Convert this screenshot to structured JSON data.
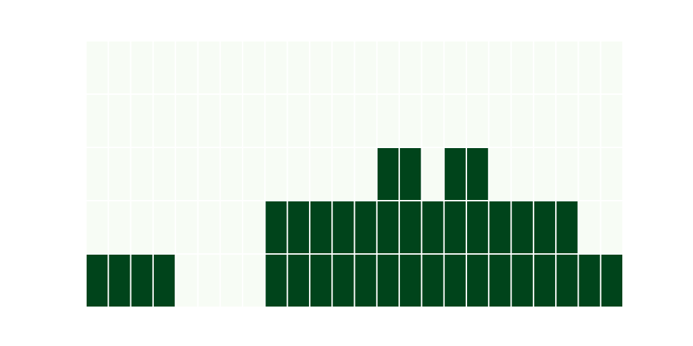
{
  "chart_data": {
    "type": "heatmap",
    "rows": 5,
    "cols": 24,
    "colors": {
      "off": "#f7fcf5",
      "on": "#00441b",
      "gap": "#ffffff",
      "background": "#ffffff"
    },
    "values": [
      [
        0,
        0,
        0,
        0,
        0,
        0,
        0,
        0,
        0,
        0,
        0,
        0,
        0,
        0,
        0,
        0,
        0,
        0,
        0,
        0,
        0,
        0,
        0,
        0
      ],
      [
        0,
        0,
        0,
        0,
        0,
        0,
        0,
        0,
        0,
        0,
        0,
        0,
        0,
        0,
        0,
        0,
        0,
        0,
        0,
        0,
        0,
        0,
        0,
        0
      ],
      [
        0,
        0,
        0,
        0,
        0,
        0,
        0,
        0,
        0,
        0,
        0,
        0,
        0,
        1,
        1,
        0,
        1,
        1,
        0,
        0,
        0,
        0,
        0,
        0
      ],
      [
        0,
        0,
        0,
        0,
        0,
        0,
        0,
        0,
        1,
        1,
        1,
        1,
        1,
        1,
        1,
        1,
        1,
        1,
        1,
        1,
        1,
        1,
        0,
        0
      ],
      [
        1,
        1,
        1,
        1,
        0,
        0,
        0,
        0,
        1,
        1,
        1,
        1,
        1,
        1,
        1,
        1,
        1,
        1,
        1,
        1,
        1,
        1,
        1,
        1
      ]
    ]
  }
}
